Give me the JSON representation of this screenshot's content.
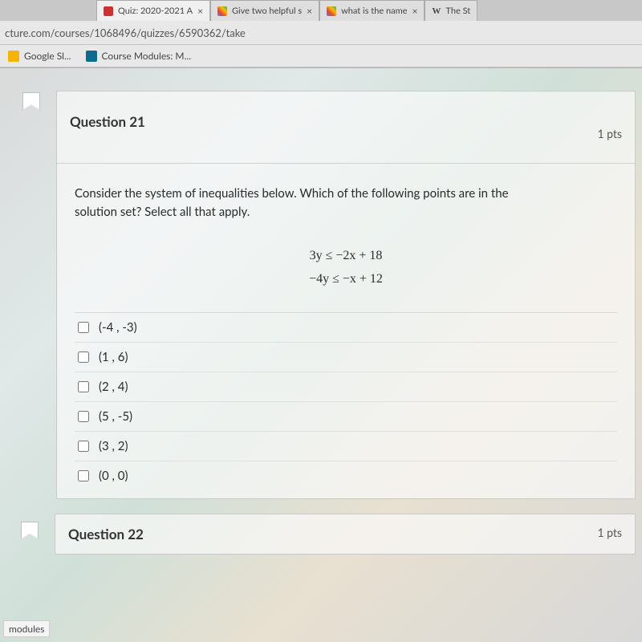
{
  "browser": {
    "tabs": [
      {
        "label": "Quiz: 2020-2021 A",
        "favicon": "#d03030"
      },
      {
        "label": "Give two helpful s",
        "favicon": "#4285f4"
      },
      {
        "label": "what is the name",
        "favicon": "#4285f4"
      },
      {
        "label": "The St",
        "favicon": "#555555",
        "prefix": "W"
      }
    ],
    "url": "cture.com/courses/1068496/quizzes/6590362/take",
    "bookmarks": [
      {
        "label": "Google Sl..."
      },
      {
        "label": "Course Modules: M..."
      }
    ]
  },
  "question": {
    "title": "Question 21",
    "points": "1 pts",
    "prompt_line1": "Consider the system of inequalities below. Which of the following points are in the",
    "prompt_line2": "solution set?  Select all that apply.",
    "eq1_lhs": "3y",
    "eq1_op": "≤",
    "eq1_rhs": "−2x + 18",
    "eq2_lhs": "−4y",
    "eq2_op": "≤",
    "eq2_rhs": "−x + 12",
    "answers": [
      "(-4 ,  -3)",
      "(1 , 6)",
      "(2 , 4)",
      "(5 , -5)",
      "(3 , 2)",
      "(0 , 0)"
    ]
  },
  "next": {
    "title": "Question 22",
    "points": "1 pts"
  },
  "chip": "modules",
  "colors": {
    "card_border": "#c9c9c9",
    "text": "#333333"
  }
}
